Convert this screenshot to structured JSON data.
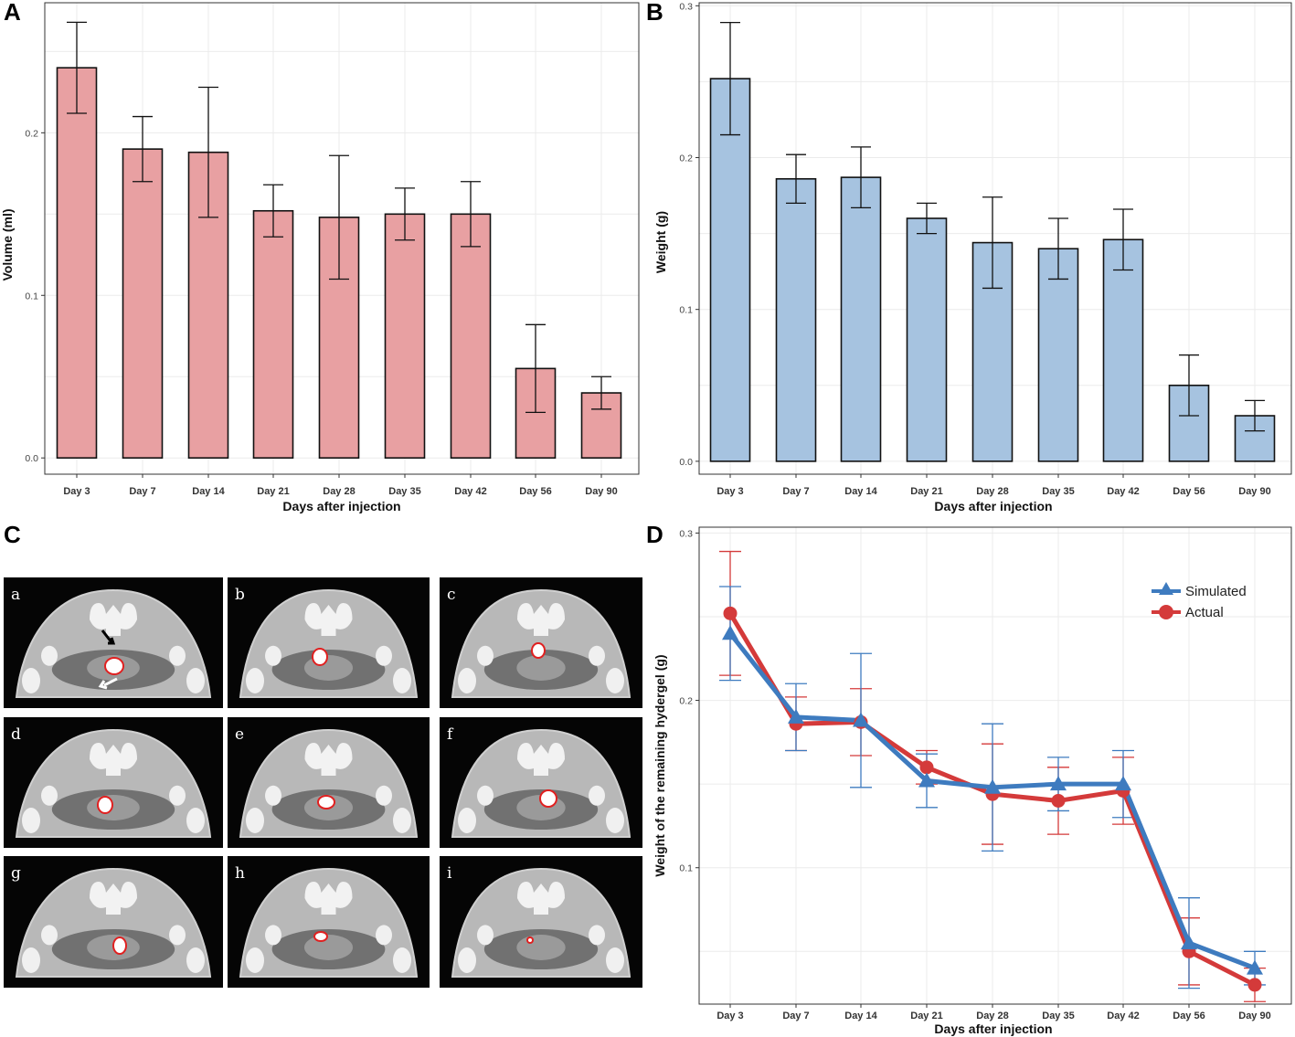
{
  "figure": {
    "letters": {
      "a": "A",
      "b": "B",
      "c": "C",
      "d": "D"
    }
  },
  "chart_data": [
    {
      "panel": "A",
      "type": "bar",
      "categories": [
        "Day 3",
        "Day 7",
        "Day 14",
        "Day 21",
        "Day 28",
        "Day 35",
        "Day 42",
        "Day 56",
        "Day 90"
      ],
      "values": [
        0.24,
        0.19,
        0.188,
        0.152,
        0.148,
        0.15,
        0.15,
        0.055,
        0.04
      ],
      "errors": [
        0.028,
        0.02,
        0.04,
        0.016,
        0.038,
        0.016,
        0.02,
        0.027,
        0.01
      ],
      "xlabel": "Days after injection",
      "ylabel": "Volume (ml)",
      "ylim": [
        -0.01,
        0.28
      ],
      "yticks": [
        "0.0",
        "0.1",
        "0.2"
      ],
      "ytick_values": [
        0,
        0.1,
        0.2
      ],
      "color": "#e8a0a2"
    },
    {
      "panel": "B",
      "type": "bar",
      "categories": [
        "Day 3",
        "Day 7",
        "Day 14",
        "Day 21",
        "Day 28",
        "Day 35",
        "Day 42",
        "Day 56",
        "Day 90"
      ],
      "values": [
        0.252,
        0.186,
        0.187,
        0.16,
        0.144,
        0.14,
        0.146,
        0.05,
        0.03
      ],
      "errors": [
        0.037,
        0.016,
        0.02,
        0.01,
        0.03,
        0.02,
        0.02,
        0.02,
        0.01
      ],
      "xlabel": "Days after injection",
      "ylabel": "Weight (g)",
      "ylim": [
        -0.0085,
        0.302
      ],
      "yticks": [
        "0.0",
        "0.1",
        "0.2",
        "0.3"
      ],
      "ytick_values": [
        0,
        0.1,
        0.2,
        0.3
      ],
      "color": "#a6c3e0"
    },
    {
      "panel": "D",
      "type": "line",
      "categories": [
        "Day 3",
        "Day 7",
        "Day 14",
        "Day 21",
        "Day 28",
        "Day 35",
        "Day 42",
        "Day 56",
        "Day 90"
      ],
      "series": [
        {
          "name": "Simulated",
          "color": "#3e7bbf",
          "marker": "triangle",
          "values": [
            0.24,
            0.19,
            0.188,
            0.152,
            0.148,
            0.15,
            0.15,
            0.055,
            0.04
          ],
          "errors": [
            0.028,
            0.02,
            0.04,
            0.016,
            0.038,
            0.016,
            0.02,
            0.027,
            0.01
          ]
        },
        {
          "name": "Actual",
          "color": "#d43a3a",
          "marker": "circle",
          "values": [
            0.252,
            0.186,
            0.187,
            0.16,
            0.144,
            0.14,
            0.146,
            0.05,
            0.03
          ],
          "errors": [
            0.037,
            0.016,
            0.02,
            0.01,
            0.03,
            0.02,
            0.02,
            0.02,
            0.01
          ]
        }
      ],
      "xlabel": "Days after injection",
      "ylabel": "Weight of the remaining hydergel (g)",
      "ylim": [
        0.0185,
        0.3035
      ],
      "yticks": [
        "0.1",
        "0.2",
        "0.3"
      ],
      "ytick_values": [
        0.1,
        0.2,
        0.3
      ],
      "legend_position": "top-right"
    }
  ],
  "ct_panel": {
    "labels": [
      "a",
      "b",
      "c",
      "d",
      "e",
      "f",
      "g",
      "h",
      "i"
    ]
  }
}
